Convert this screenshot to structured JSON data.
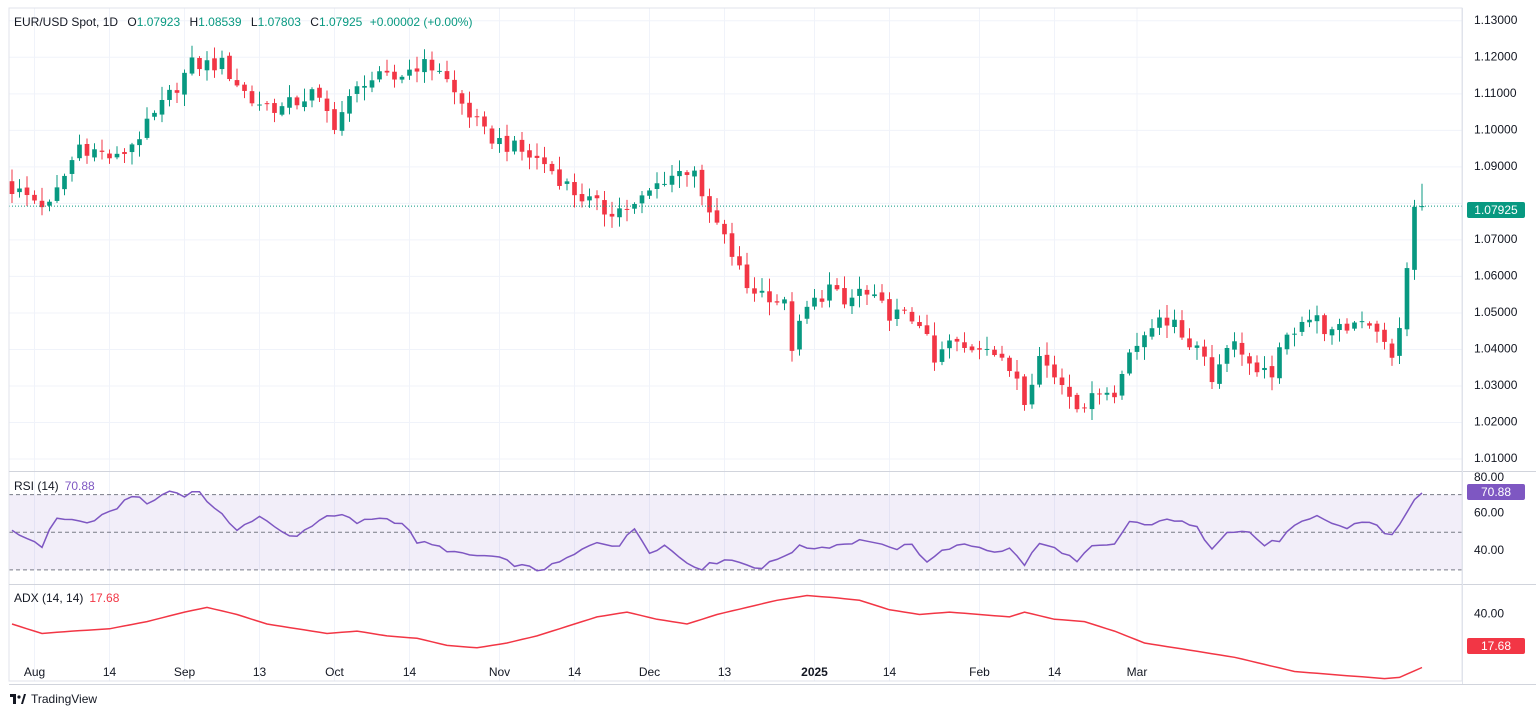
{
  "header": {
    "symbol": "EUR/USD Spot, 1D",
    "open_label": "O",
    "open": "1.07923",
    "high_label": "H",
    "high": "1.08539",
    "low_label": "L",
    "low": "1.07803",
    "close_label": "C",
    "close": "1.07925",
    "change": "+0.00002 (+0.00%)"
  },
  "colors": {
    "up": "#089981",
    "down": "#f23645",
    "rsi": "#7e57c2",
    "adx": "#f23645",
    "grid": "#f0f3fa",
    "axis_text": "#131722",
    "last_price_tag": "#089981"
  },
  "rsi_panel": {
    "label": "RSI (14)",
    "value": "70.88"
  },
  "adx_panel": {
    "label": "ADX (14, 14)",
    "value": "17.68"
  },
  "brand": {
    "name": "TradingView",
    "icon": "tradingview-logo-icon"
  },
  "chart_data": [
    {
      "type": "candlestick",
      "title": "EUR/USD Spot, 1D",
      "price_axis_ticks": [
        "1.13000",
        "1.12000",
        "1.11000",
        "1.10000",
        "1.09000",
        "1.07000",
        "1.06000",
        "1.05000",
        "1.04000",
        "1.03000",
        "1.02000",
        "1.01000"
      ],
      "ylim": [
        1.007,
        1.1335
      ],
      "last_price": "1.07925",
      "time_axis_ticks": [
        "Aug",
        "14",
        "Sep",
        "13",
        "Oct",
        "14",
        "Nov",
        "14",
        "Dec",
        "13",
        "2025",
        "14",
        "Feb",
        "14",
        "Mar"
      ],
      "series": [
        {
          "name": "EUR/USD",
          "anchors": [
            [
              0,
              1.084
            ],
            [
              5,
              1.079
            ],
            [
              9,
              1.096
            ],
            [
              14,
              1.092
            ],
            [
              18,
              1.101
            ],
            [
              24,
              1.118
            ],
            [
              28,
              1.118
            ],
            [
              32,
              1.108
            ],
            [
              36,
              1.106
            ],
            [
              40,
              1.11
            ],
            [
              43,
              1.102
            ],
            [
              47,
              1.114
            ],
            [
              51,
              1.114
            ],
            [
              54,
              1.118
            ],
            [
              57,
              1.117
            ],
            [
              59,
              1.11
            ],
            [
              63,
              1.099
            ],
            [
              67,
              1.095
            ],
            [
              71,
              1.091
            ],
            [
              75,
              1.083
            ],
            [
              79,
              1.078
            ],
            [
              83,
              1.079
            ],
            [
              87,
              1.087
            ],
            [
              91,
              1.09
            ],
            [
              92,
              1.08
            ],
            [
              94,
              1.074
            ],
            [
              96,
              1.066
            ],
            [
              98,
              1.057
            ],
            [
              101,
              1.055
            ],
            [
              103,
              1.052
            ],
            [
              104,
              1.041
            ],
            [
              106,
              1.051
            ],
            [
              109,
              1.057
            ],
            [
              111,
              1.052
            ],
            [
              113,
              1.056
            ],
            [
              115,
              1.053
            ],
            [
              117,
              1.05
            ],
            [
              119,
              1.049
            ],
            [
              121,
              1.048
            ],
            [
              123,
              1.036
            ],
            [
              125,
              1.042
            ],
            [
              127,
              1.04
            ],
            [
              130,
              1.042
            ],
            [
              132,
              1.036
            ],
            [
              134,
              1.033
            ],
            [
              135,
              1.027
            ],
            [
              137,
              1.038
            ],
            [
              139,
              1.033
            ],
            [
              141,
              1.029
            ],
            [
              143,
              1.022
            ],
            [
              144,
              1.03
            ],
            [
              147,
              1.027
            ],
            [
              149,
              1.041
            ],
            [
              151,
              1.042
            ],
            [
              153,
              1.05
            ],
            [
              155,
              1.046
            ],
            [
              157,
              1.042
            ],
            [
              159,
              1.04
            ],
            [
              160,
              1.031
            ],
            [
              162,
              1.042
            ],
            [
              164,
              1.04
            ],
            [
              166,
              1.032
            ],
            [
              168,
              1.034
            ],
            [
              170,
              1.043
            ],
            [
              172,
              1.049
            ],
            [
              174,
              1.048
            ],
            [
              176,
              1.044
            ],
            [
              178,
              1.046
            ],
            [
              180,
              1.049
            ],
            [
              182,
              1.046
            ],
            [
              183,
              1.041
            ],
            [
              184,
              1.037
            ],
            [
              185,
              1.047
            ],
            [
              186,
              1.061
            ],
            [
              187,
              1.079
            ],
            [
              188,
              1.0792
            ]
          ]
        }
      ]
    },
    {
      "type": "line",
      "title": "RSI (14)",
      "axis_ticks": [
        "80.00",
        "60.00",
        "40.00"
      ],
      "ylim": [
        23,
        81
      ],
      "bands": [
        70,
        50,
        30
      ],
      "series": [
        {
          "name": "RSI (14)",
          "anchors": [
            [
              0,
              50
            ],
            [
              2,
              47
            ],
            [
              4,
              43
            ],
            [
              6,
              58
            ],
            [
              10,
              55
            ],
            [
              13,
              60
            ],
            [
              16,
              70
            ],
            [
              18,
              65
            ],
            [
              21,
              72
            ],
            [
              23,
              70
            ],
            [
              25,
              72
            ],
            [
              27,
              62
            ],
            [
              30,
              52
            ],
            [
              33,
              58
            ],
            [
              36,
              50
            ],
            [
              38,
              48
            ],
            [
              41,
              57
            ],
            [
              44,
              59
            ],
            [
              46,
              55
            ],
            [
              49,
              58
            ],
            [
              52,
              55
            ],
            [
              54,
              45
            ],
            [
              57,
              42
            ],
            [
              60,
              38
            ],
            [
              64,
              37
            ],
            [
              67,
              33
            ],
            [
              70,
              30
            ],
            [
              72,
              32
            ],
            [
              75,
              38
            ],
            [
              78,
              45
            ],
            [
              81,
              43
            ],
            [
              83,
              52
            ],
            [
              85,
              40
            ],
            [
              87,
              43
            ],
            [
              90,
              34
            ],
            [
              92,
              31
            ],
            [
              95,
              36
            ],
            [
              98,
              33
            ],
            [
              100,
              31
            ],
            [
              103,
              38
            ],
            [
              105,
              42
            ],
            [
              108,
              42
            ],
            [
              111,
              44
            ],
            [
              114,
              46
            ],
            [
              117,
              41
            ],
            [
              120,
              43
            ],
            [
              122,
              35
            ],
            [
              125,
              42
            ],
            [
              128,
              43
            ],
            [
              131,
              40
            ],
            [
              133,
              41
            ],
            [
              135,
              33
            ],
            [
              137,
              44
            ],
            [
              140,
              40
            ],
            [
              142,
              34
            ],
            [
              144,
              42
            ],
            [
              147,
              43
            ],
            [
              149,
              56
            ],
            [
              152,
              53
            ],
            [
              154,
              58
            ],
            [
              156,
              55
            ],
            [
              158,
              52
            ],
            [
              160,
              42
            ],
            [
              162,
              51
            ],
            [
              165,
              50
            ],
            [
              167,
              43
            ],
            [
              169,
              46
            ],
            [
              171,
              53
            ],
            [
              174,
              58
            ],
            [
              176,
              55
            ],
            [
              178,
              52
            ],
            [
              180,
              56
            ],
            [
              182,
              54
            ],
            [
              183,
              50
            ],
            [
              184,
              48
            ],
            [
              186,
              60
            ],
            [
              187,
              68
            ],
            [
              188,
              70.88
            ]
          ]
        }
      ]
    },
    {
      "type": "line",
      "title": "ADX (14, 14)",
      "axis_ticks": [
        "40.00"
      ],
      "ylim": [
        12,
        52
      ],
      "series": [
        {
          "name": "ADX (14, 14)",
          "anchors": [
            [
              0,
              36
            ],
            [
              4,
              32
            ],
            [
              8,
              33
            ],
            [
              13,
              34
            ],
            [
              18,
              37
            ],
            [
              23,
              41
            ],
            [
              26,
              43
            ],
            [
              30,
              40
            ],
            [
              34,
              36
            ],
            [
              38,
              34
            ],
            [
              42,
              32
            ],
            [
              46,
              33
            ],
            [
              50,
              31
            ],
            [
              54,
              30
            ],
            [
              58,
              27
            ],
            [
              62,
              26
            ],
            [
              66,
              28
            ],
            [
              70,
              31
            ],
            [
              74,
              35
            ],
            [
              78,
              39
            ],
            [
              82,
              41
            ],
            [
              86,
              38
            ],
            [
              90,
              36
            ],
            [
              94,
              40
            ],
            [
              98,
              43
            ],
            [
              102,
              46
            ],
            [
              106,
              48
            ],
            [
              110,
              47
            ],
            [
              113,
              46
            ],
            [
              117,
              42
            ],
            [
              121,
              40
            ],
            [
              125,
              41
            ],
            [
              129,
              40
            ],
            [
              133,
              39
            ],
            [
              135,
              41
            ],
            [
              139,
              38
            ],
            [
              143,
              37
            ],
            [
              147,
              33
            ],
            [
              151,
              28
            ],
            [
              155,
              26
            ],
            [
              159,
              24
            ],
            [
              163,
              22
            ],
            [
              167,
              19
            ],
            [
              171,
              16
            ],
            [
              175,
              15
            ],
            [
              179,
              14
            ],
            [
              183,
              13
            ],
            [
              185,
              13.5
            ],
            [
              188,
              17.68
            ]
          ]
        }
      ]
    }
  ]
}
